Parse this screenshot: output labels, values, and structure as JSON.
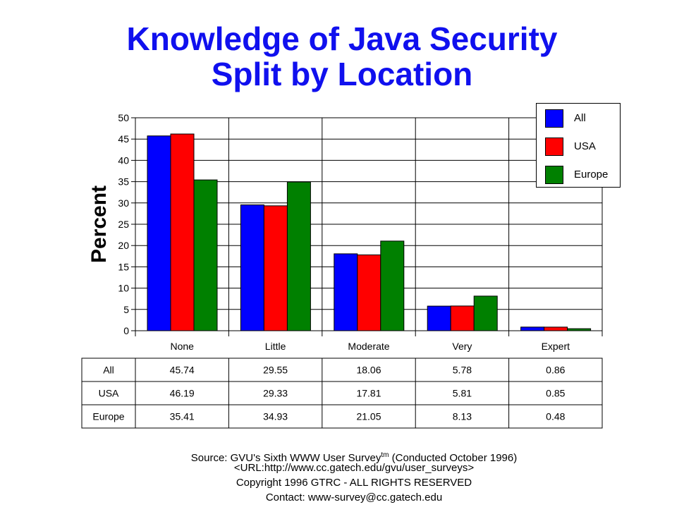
{
  "chart_data": {
    "type": "bar",
    "title_lines": [
      "Knowledge of Java Security",
      "Split by Location"
    ],
    "xlabel": "",
    "ylabel": "Percent",
    "ylim": [
      0,
      50
    ],
    "yticks": [
      0,
      5,
      10,
      15,
      20,
      25,
      30,
      35,
      40,
      45,
      50
    ],
    "grid": true,
    "legend_position": "top-right",
    "categories": [
      "None",
      "Little",
      "Moderate",
      "Very",
      "Expert"
    ],
    "series": [
      {
        "name": "All",
        "color": "#0000ff",
        "values": [
          45.74,
          29.55,
          18.06,
          5.78,
          0.86
        ]
      },
      {
        "name": "USA",
        "color": "#ff0000",
        "values": [
          46.19,
          29.33,
          17.81,
          5.81,
          0.85
        ]
      },
      {
        "name": "Europe",
        "color": "#008000",
        "values": [
          35.41,
          34.93,
          21.05,
          8.13,
          0.48
        ]
      }
    ],
    "table": {
      "rows": [
        {
          "label": "All",
          "values": [
            "45.74",
            "29.55",
            "18.06",
            "5.78",
            "0.86"
          ]
        },
        {
          "label": "USA",
          "values": [
            "46.19",
            "29.33",
            "17.81",
            "5.81",
            "0.85"
          ]
        },
        {
          "label": "Europe",
          "values": [
            "35.41",
            "34.93",
            "21.05",
            "8.13",
            "0.48"
          ]
        }
      ]
    }
  },
  "footer": {
    "source_prefix": "Source: GVU's Sixth WWW User Survey",
    "source_sup": "tm",
    "source_suffix": " (Conducted October 1996)",
    "url": "<URL:http://www.cc.gatech.edu/gvu/user_surveys>",
    "copyright": "Copyright 1996 GTRC - ALL RIGHTS RESERVED",
    "contact": "Contact: www-survey@cc.gatech.edu"
  }
}
